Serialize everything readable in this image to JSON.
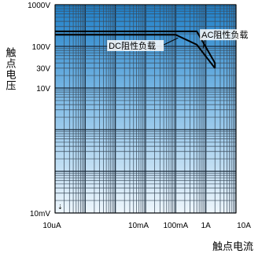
{
  "chart_data": {
    "type": "line",
    "title": "",
    "xlabel": "触点电流",
    "ylabel": "触点电压",
    "x_scale": "log",
    "y_scale": "log",
    "xlim": [
      "10uA",
      "10A"
    ],
    "ylim": [
      "10mV",
      "1000V"
    ],
    "grid": true,
    "x_ticks": [
      {
        "value_A": 1e-05,
        "label": "10uA"
      },
      {
        "value_A": 0.01,
        "label": "10mA"
      },
      {
        "value_A": 0.1,
        "label": "100mA"
      },
      {
        "value_A": 1,
        "label": "1A"
      },
      {
        "value_A": 10,
        "label": "10A"
      }
    ],
    "y_ticks": [
      {
        "value_V": 1000,
        "label": "1000V"
      },
      {
        "value_V": 100,
        "label": "100V"
      },
      {
        "value_V": 30,
        "label": "30V"
      },
      {
        "value_V": 10,
        "label": "10V"
      },
      {
        "value_V": 0.01,
        "label": "10mV"
      }
    ],
    "series": [
      {
        "name": "AC阻性负载",
        "points": [
          {
            "x_A": 1e-05,
            "y_V": 230
          },
          {
            "x_A": 0.5,
            "y_V": 230
          },
          {
            "x_A": 2,
            "y_V": 40
          },
          {
            "x_A": 2,
            "y_V": 30
          }
        ]
      },
      {
        "name": "DC阻性负载",
        "points": [
          {
            "x_A": 1e-05,
            "y_V": 190
          },
          {
            "x_A": 0.1,
            "y_V": 190
          },
          {
            "x_A": 0.5,
            "y_V": 110
          },
          {
            "x_A": 2,
            "y_V": 30
          }
        ]
      }
    ],
    "annotations": [
      {
        "text": "AC阻性负载",
        "series": "AC阻性负载"
      },
      {
        "text": "DC阻性负载",
        "series": "DC阻性负载"
      }
    ],
    "colors": {
      "background_top": "#1e7fc8",
      "background_bottom": "#e8f3fb",
      "grid_major": "#1a2a3a",
      "grid_minor": "#3a4a5a",
      "series_line": "#000000"
    }
  }
}
